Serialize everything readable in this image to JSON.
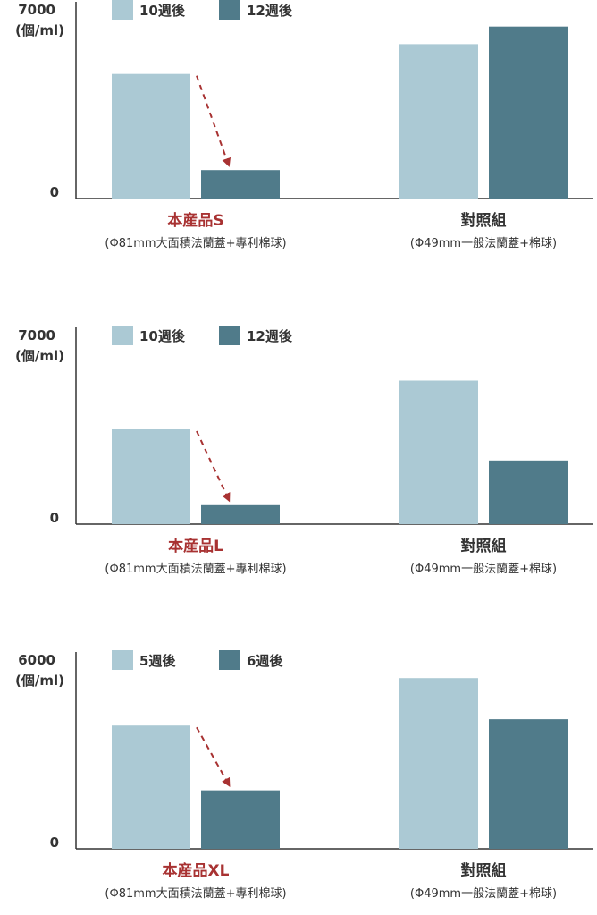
{
  "colors": {
    "series_light": "#abc9d4",
    "series_dark": "#507b8a",
    "highlight": "#a83232",
    "text": "#333333",
    "axis": "#333333"
  },
  "chart_data": [
    {
      "type": "bar",
      "y_max_label": "7000",
      "y_unit": "(個/ml)",
      "y_zero_label": "0",
      "ylim": [
        0,
        7000
      ],
      "series": [
        {
          "name": "10週後",
          "values": [
            4600,
            1050
          ]
        },
        {
          "name": "12週後",
          "values": [
            5700,
            6350
          ]
        }
      ],
      "groups": [
        {
          "label": "本産品S",
          "sublabel": "(Φ81mm大面積法蘭蓋+專利棉球)",
          "values": [
            4600,
            1050
          ],
          "highlight": true
        },
        {
          "label": "對照組",
          "sublabel": "(Φ49mm一般法蘭蓋+棉球)",
          "values": [
            5700,
            6350
          ],
          "highlight": false
        }
      ],
      "legend": "top-left",
      "grid": false
    },
    {
      "type": "bar",
      "y_max_label": "7000",
      "y_unit": "(個/ml)",
      "y_zero_label": "0",
      "ylim": [
        0,
        7000
      ],
      "series": [
        {
          "name": "10週後",
          "values": [
            3500,
            700
          ]
        },
        {
          "name": "12週後",
          "values": [
            5300,
            2350
          ]
        }
      ],
      "groups": [
        {
          "label": "本産品L",
          "sublabel": "(Φ81mm大面積法蘭蓋+專利棉球)",
          "values": [
            3500,
            700
          ],
          "highlight": true
        },
        {
          "label": "對照組",
          "sublabel": "(Φ49mm一般法蘭蓋+棉球)",
          "values": [
            5300,
            2350
          ],
          "highlight": false
        }
      ],
      "legend": "top-left",
      "grid": false
    },
    {
      "type": "bar",
      "y_max_label": "6000",
      "y_unit": "(個/ml)",
      "y_zero_label": "0",
      "ylim": [
        0,
        6000
      ],
      "series": [
        {
          "name": "5週後",
          "values": [
            3900,
            1850
          ]
        },
        {
          "name": "6週後",
          "values": [
            5400,
            4100
          ]
        }
      ],
      "groups": [
        {
          "label": "本産品XL",
          "sublabel": "(Φ81mm大面積法蘭蓋+專利棉球)",
          "values": [
            3900,
            1850
          ],
          "highlight": true
        },
        {
          "label": "對照組",
          "sublabel": "(Φ49mm一般法蘭蓋+棉球)",
          "values": [
            5400,
            4100
          ],
          "highlight": false
        }
      ],
      "legend": "top-left",
      "grid": false
    }
  ]
}
